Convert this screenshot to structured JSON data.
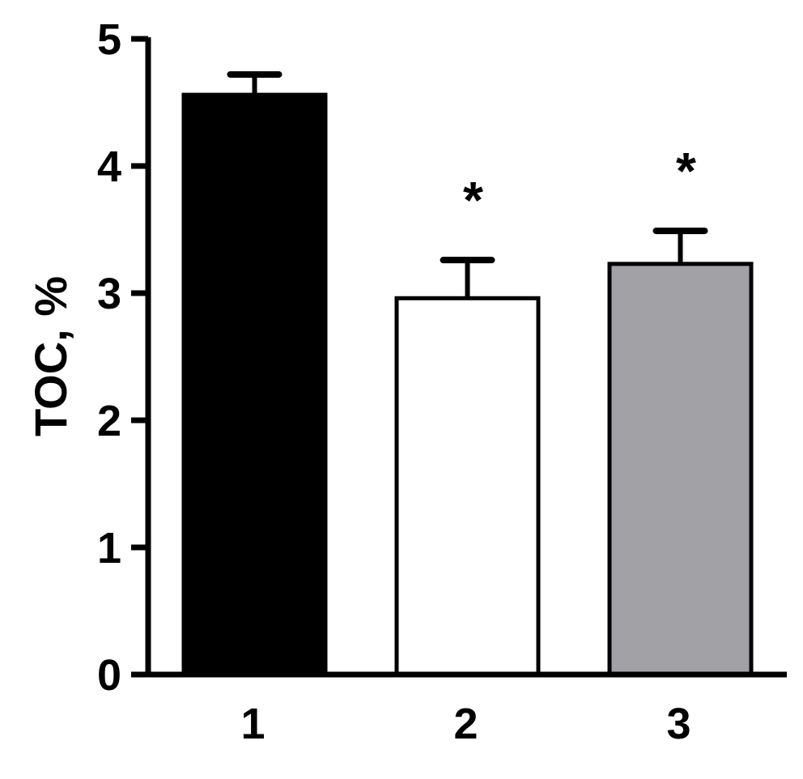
{
  "chart_data": {
    "type": "bar",
    "title": "",
    "xlabel": "",
    "ylabel": "TOC, %",
    "categories": [
      "1",
      "2",
      "3"
    ],
    "values": [
      4.56,
      2.96,
      3.23
    ],
    "error_upper": [
      4.72,
      3.26,
      3.49
    ],
    "bar_colors": [
      "#000000",
      "#ffffff",
      "#a2a1a6"
    ],
    "annotations": [
      "",
      "*",
      "*"
    ],
    "ylim": [
      0,
      5
    ],
    "yticks": [
      "0",
      "1",
      "2",
      "3",
      "4",
      "5"
    ],
    "grid": false,
    "legend": "none"
  }
}
